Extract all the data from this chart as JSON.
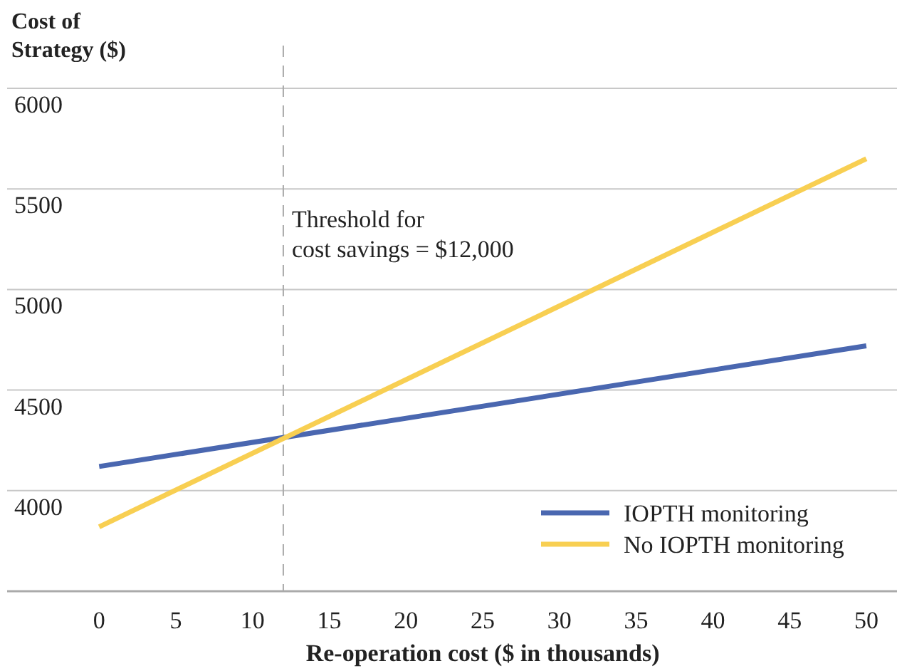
{
  "chart_data": {
    "type": "line",
    "ylabel": "Cost of\nStrategy ($)",
    "xlabel": "Re-operation cost ($ in thousands)",
    "xlim": [
      -6,
      52
    ],
    "xticks": [
      0,
      5,
      10,
      15,
      20,
      25,
      30,
      35,
      40,
      45,
      50
    ],
    "ylim": [
      3500,
      6000
    ],
    "yticks": [
      4000,
      4500,
      5000,
      5500,
      6000
    ],
    "grid": "y",
    "legend": "bottom right",
    "line_style": "solid",
    "x": [
      0,
      50
    ],
    "series": [
      {
        "name": "IOPTH monitoring",
        "color": "#4a67b0",
        "values": [
          4120,
          4720
        ]
      },
      {
        "name": "No IOPTH monitoring",
        "color": "#f8cf52",
        "values": [
          3820,
          5650
        ]
      }
    ],
    "ref_lines": [
      {
        "axis": "x",
        "value": 12,
        "label": "Threshold for\ncost savings = $12,000",
        "color": "#aaaaaa",
        "line_style": "dashed"
      }
    ]
  }
}
